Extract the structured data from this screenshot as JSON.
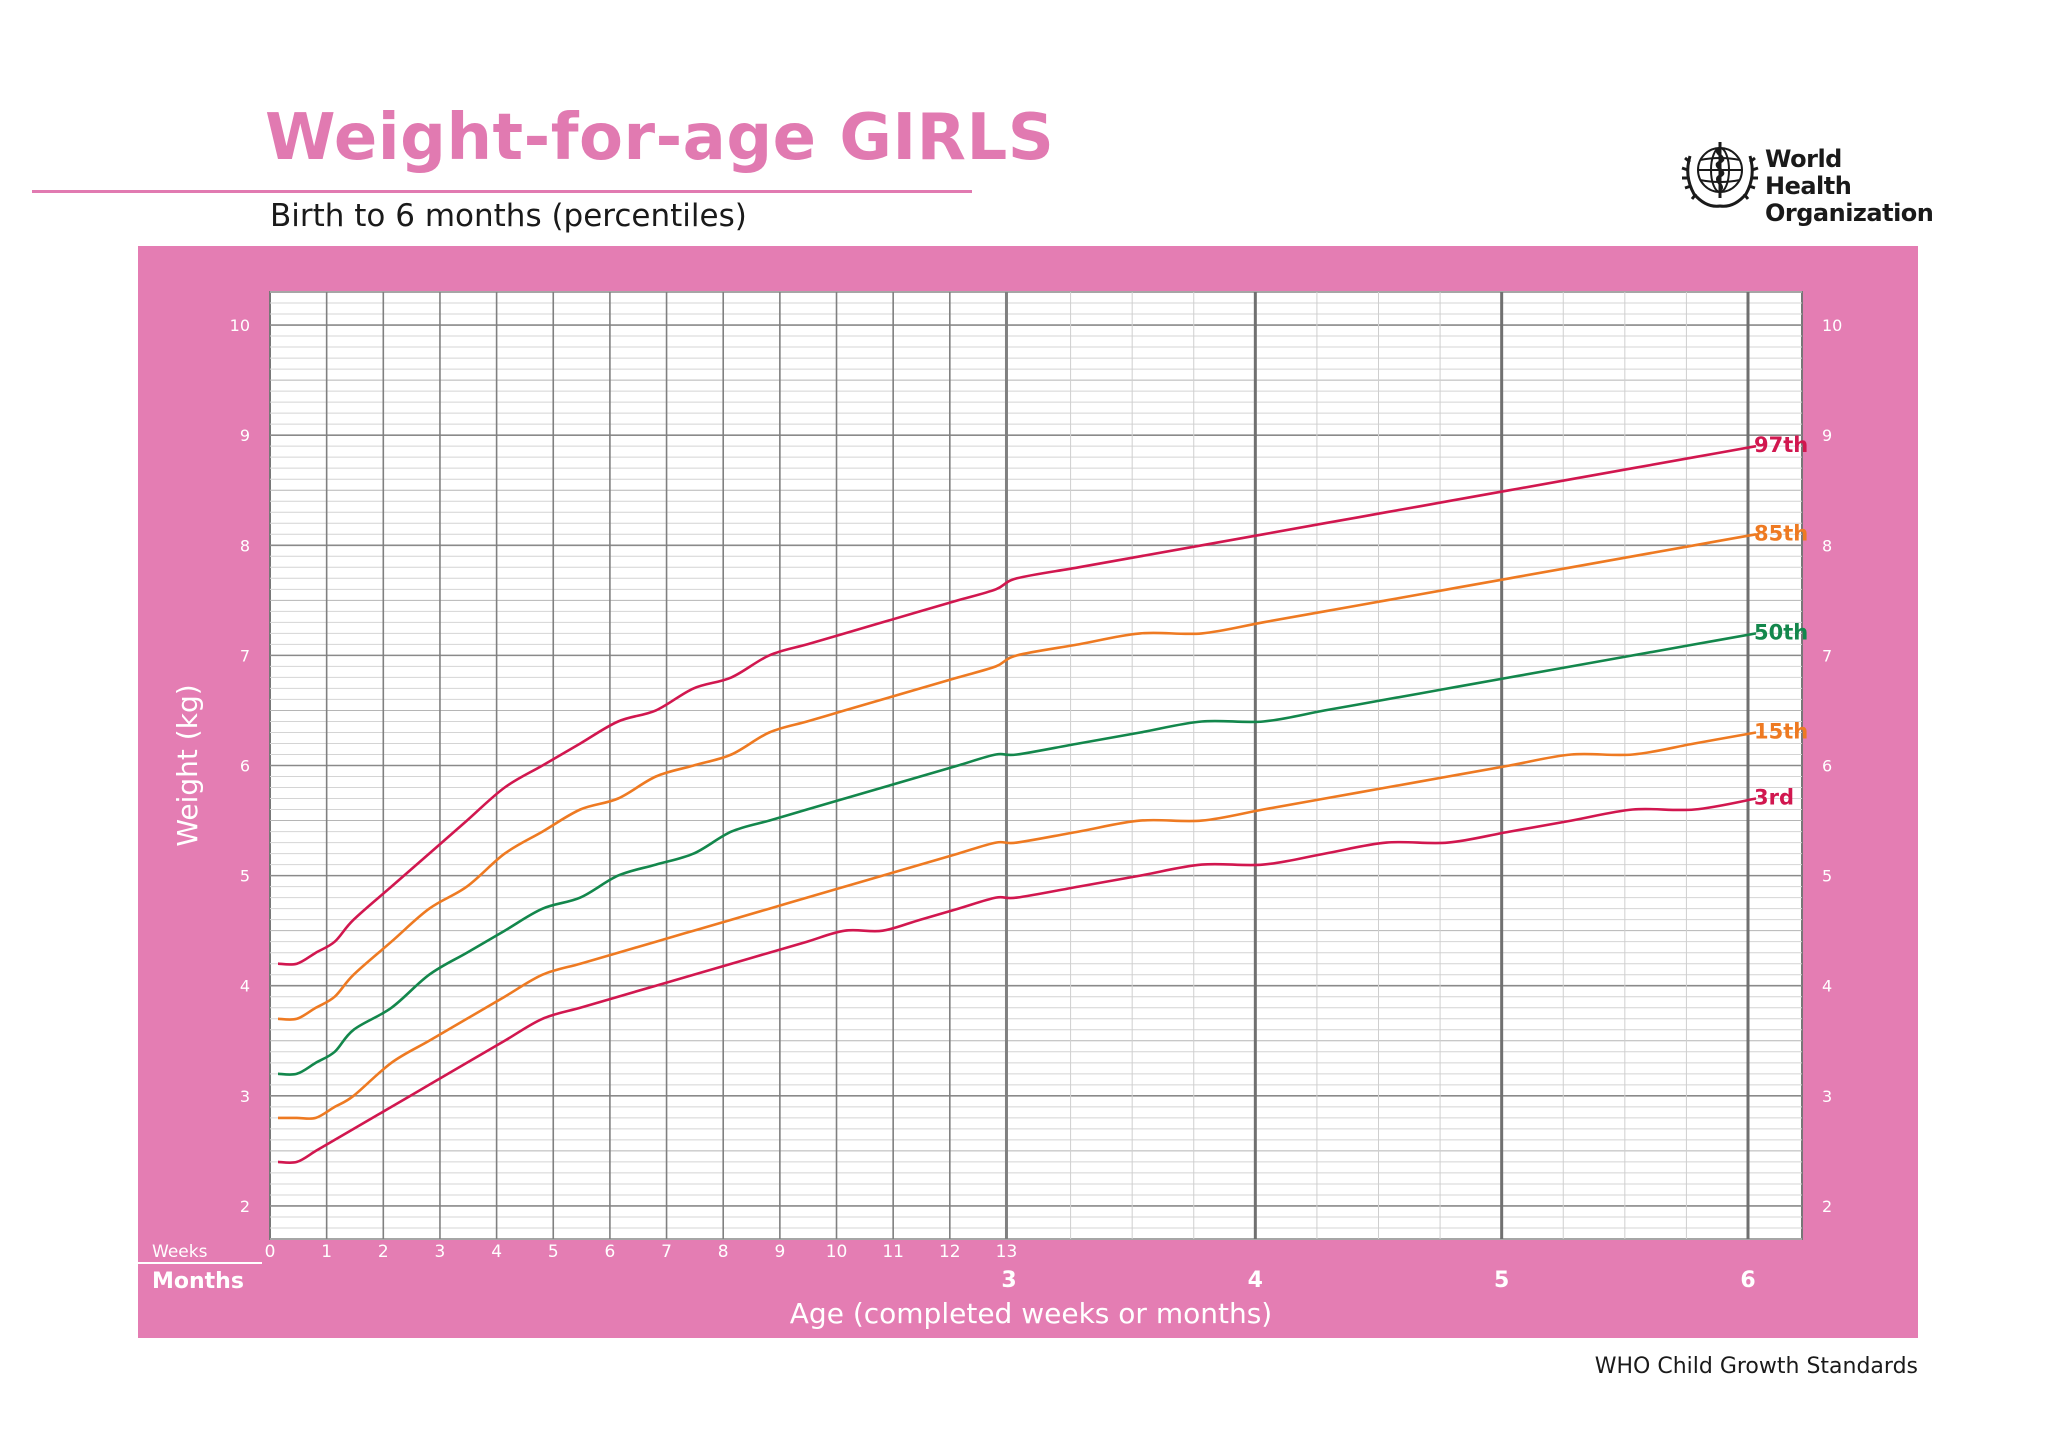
{
  "header": {
    "title": "Weight-for-age GIRLS",
    "subtitle": "Birth to 6 months (percentiles)",
    "logo_text_line1": "World Health",
    "logo_text_line2": "Organization"
  },
  "footer": {
    "text": "WHO Child Growth Standards"
  },
  "colors": {
    "title_pink": "#e17ab1",
    "panel_pink": "#e47db3",
    "p3_p97_red": "#d1174f",
    "p15_p85_orange": "#ee7a22",
    "p50_green": "#13874c"
  },
  "chart_data": {
    "type": "line",
    "title": "Weight-for-age GIRLS",
    "subtitle": "Birth to 6 months (percentiles)",
    "xlabel": "Age (completed weeks or months)",
    "ylabel": "Weight (kg)",
    "ylim": [
      1.7,
      10.3
    ],
    "y_ticks": [
      2,
      3,
      4,
      5,
      6,
      7,
      8,
      9,
      10
    ],
    "x_weeks_label": "Weeks",
    "x_months_label": "Months",
    "x_week_ticks": [
      "0",
      "1",
      "2",
      "3",
      "4",
      "5",
      "6",
      "7",
      "8",
      "9",
      "10",
      "11",
      "12",
      "13"
    ],
    "x_month_ticks": [
      "3",
      "4",
      "5",
      "6"
    ],
    "x_unit": "months",
    "xlim": [
      0,
      6.2
    ],
    "grid": true,
    "x": [
      0,
      0.0767,
      0.1534,
      0.2301,
      0.3068,
      0.4602,
      0.6136,
      0.7669,
      0.9203,
      1.0737,
      1.2271,
      1.3805,
      1.5339,
      1.6873,
      1.8407,
      1.9941,
      2.1475,
      2.3008,
      2.4542,
      2.6076,
      2.761,
      2.9144,
      3.0,
      3.25,
      3.5,
      3.75,
      4.0,
      4.25,
      4.5,
      4.75,
      5.0,
      5.25,
      5.5,
      5.75,
      6.0
    ],
    "series": [
      {
        "name": "3rd",
        "color": "#d1174f",
        "values": [
          2.4,
          2.4,
          2.5,
          2.6,
          2.7,
          2.9,
          3.1,
          3.3,
          3.5,
          3.7,
          3.8,
          3.9,
          4.0,
          4.1,
          4.2,
          4.3,
          4.4,
          4.5,
          4.5,
          4.6,
          4.7,
          4.8,
          4.8,
          4.9,
          5.0,
          5.1,
          5.1,
          5.2,
          5.3,
          5.3,
          5.4,
          5.5,
          5.6,
          5.6,
          5.7
        ]
      },
      {
        "name": "15th",
        "color": "#ee7a22",
        "values": [
          2.8,
          2.8,
          2.8,
          2.9,
          3.0,
          3.3,
          3.5,
          3.7,
          3.9,
          4.1,
          4.2,
          4.3,
          4.4,
          4.5,
          4.6,
          4.7,
          4.8,
          4.9,
          5.0,
          5.1,
          5.2,
          5.3,
          5.3,
          5.4,
          5.5,
          5.5,
          5.6,
          5.7,
          5.8,
          5.9,
          6.0,
          6.1,
          6.1,
          6.2,
          6.3
        ]
      },
      {
        "name": "50th",
        "color": "#13874c",
        "values": [
          3.2,
          3.2,
          3.3,
          3.4,
          3.6,
          3.8,
          4.1,
          4.3,
          4.5,
          4.7,
          4.8,
          5.0,
          5.1,
          5.2,
          5.4,
          5.5,
          5.6,
          5.7,
          5.8,
          5.9,
          6.0,
          6.1,
          6.1,
          6.2,
          6.3,
          6.4,
          6.4,
          6.5,
          6.6,
          6.7,
          6.8,
          6.9,
          7.0,
          7.1,
          7.2
        ]
      },
      {
        "name": "85th",
        "color": "#ee7a22",
        "values": [
          3.7,
          3.7,
          3.8,
          3.9,
          4.1,
          4.4,
          4.7,
          4.9,
          5.2,
          5.4,
          5.6,
          5.7,
          5.9,
          6.0,
          6.1,
          6.3,
          6.4,
          6.5,
          6.6,
          6.7,
          6.8,
          6.9,
          7.0,
          7.1,
          7.2,
          7.2,
          7.3,
          7.4,
          7.5,
          7.6,
          7.7,
          7.8,
          7.9,
          8.0,
          8.1
        ]
      },
      {
        "name": "97th",
        "color": "#d1174f",
        "values": [
          4.2,
          4.2,
          4.3,
          4.4,
          4.6,
          4.9,
          5.2,
          5.5,
          5.8,
          6.0,
          6.2,
          6.4,
          6.5,
          6.7,
          6.8,
          7.0,
          7.1,
          7.2,
          7.3,
          7.4,
          7.5,
          7.6,
          7.7,
          7.8,
          7.9,
          8.0,
          8.1,
          8.2,
          8.3,
          8.4,
          8.5,
          8.6,
          8.7,
          8.8,
          8.9
        ]
      }
    ]
  }
}
